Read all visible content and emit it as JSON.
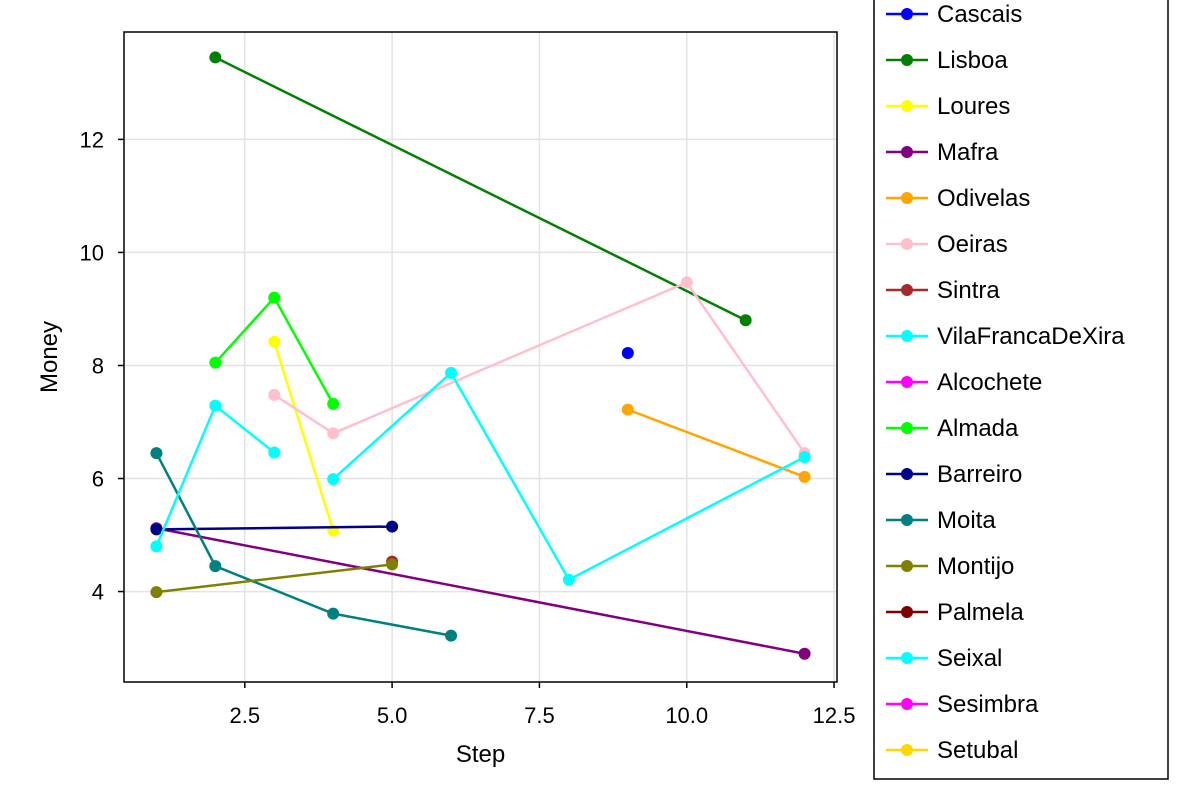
{
  "chart_data": {
    "type": "line",
    "xlabel": "Step",
    "ylabel": "Money",
    "xlim": [
      0.45,
      12.55
    ],
    "ylim": [
      2.4,
      13.9
    ],
    "xticks": [
      2.5,
      5.0,
      7.5,
      10.0,
      12.5
    ],
    "xtick_labels": [
      "2.5",
      "5.0",
      "7.5",
      "10.0",
      "12.5"
    ],
    "yticks": [
      4,
      6,
      8,
      10,
      12
    ],
    "ytick_labels": [
      "4",
      "6",
      "8",
      "10",
      "12"
    ],
    "grid": true,
    "legend_position": "right",
    "series": [
      {
        "name": "Cascais",
        "color": "#0000ff",
        "points": [
          [
            9,
            8.22
          ]
        ]
      },
      {
        "name": "Lisboa",
        "color": "#008000",
        "points": [
          [
            2,
            13.45
          ],
          [
            11,
            8.8
          ]
        ]
      },
      {
        "name": "Loures",
        "color": "#ffff00",
        "points": [
          [
            3,
            8.42
          ],
          [
            4,
            5.08
          ]
        ]
      },
      {
        "name": "Mafra",
        "color": "#800080",
        "points": [
          [
            1,
            5.12
          ],
          [
            12,
            2.9
          ]
        ]
      },
      {
        "name": "Odivelas",
        "color": "#ffa500",
        "points": [
          [
            9,
            7.22
          ],
          [
            12,
            6.03
          ]
        ]
      },
      {
        "name": "Oeiras",
        "color": "#ffc0cb",
        "points": [
          [
            3,
            7.48
          ],
          [
            4,
            6.8
          ],
          [
            10,
            9.47
          ],
          [
            12,
            6.45
          ]
        ]
      },
      {
        "name": "Sintra",
        "color": "#a52a2a",
        "points": [
          [
            5,
            4.53
          ]
        ]
      },
      {
        "name": "VilaFrancaDeXira",
        "color": "#00ffff",
        "points": [
          [
            4,
            5.99
          ],
          [
            6,
            7.87
          ],
          [
            8,
            4.21
          ],
          [
            12,
            6.38
          ]
        ]
      },
      {
        "name": "Alcochete",
        "color": "#ff00ff",
        "points": []
      },
      {
        "name": "Almada",
        "color": "#00ff00",
        "points": [
          [
            2,
            8.05
          ],
          [
            3,
            9.2
          ],
          [
            4,
            7.32
          ]
        ]
      },
      {
        "name": "Barreiro",
        "color": "#00008b",
        "points": [
          [
            1,
            5.1
          ],
          [
            5,
            5.15
          ]
        ]
      },
      {
        "name": "Moita",
        "color": "#008080",
        "points": [
          [
            1,
            6.45
          ],
          [
            2,
            4.45
          ],
          [
            4,
            3.61
          ],
          [
            6,
            3.22
          ]
        ]
      },
      {
        "name": "Montijo",
        "color": "#808000",
        "points": [
          [
            1,
            3.99
          ],
          [
            5,
            4.48
          ]
        ]
      },
      {
        "name": "Palmela",
        "color": "#800000",
        "points": []
      },
      {
        "name": "Seixal",
        "color": "#00ffff",
        "points": [
          [
            1,
            4.8
          ],
          [
            2,
            7.29
          ],
          [
            3,
            6.46
          ]
        ]
      },
      {
        "name": "Sesimbra",
        "color": "#ff00ff",
        "points": []
      },
      {
        "name": "Setubal",
        "color": "#ffd700",
        "points": []
      }
    ]
  }
}
